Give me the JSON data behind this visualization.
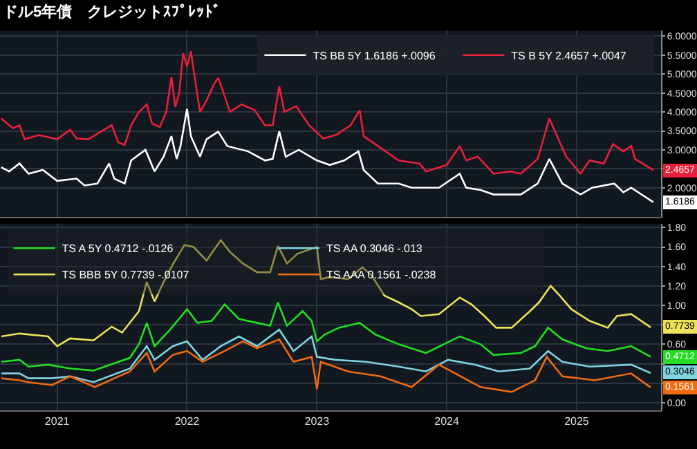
{
  "chart_data": [
    {
      "type": "line",
      "title": "ドル5年債　クレジットｽﾌﾟﾚｯﾄﾞ",
      "xlim": [
        2021.06,
        2026.15
      ],
      "xticks": [
        {
          "value": 2021.5,
          "label": null
        },
        {
          "value": 2022.5,
          "label": null
        },
        {
          "value": 2023.5,
          "label": null
        },
        {
          "value": 2024.5,
          "label": null
        },
        {
          "value": 2025.5,
          "label": null
        }
      ],
      "ylim": [
        1.23,
        6.15
      ],
      "yticks": [
        {
          "value": 2,
          "label": "2.0000"
        },
        {
          "value": 2.5,
          "label": null
        },
        {
          "value": 3,
          "label": "3.0000"
        },
        {
          "value": 3.5,
          "label": "3.5000"
        },
        {
          "value": 4,
          "label": "4.0000"
        },
        {
          "value": 4.5,
          "label": "4.5000"
        },
        {
          "value": 5,
          "label": "5.0000"
        },
        {
          "value": 5.5,
          "label": "5.5000"
        },
        {
          "value": 6,
          "label": "6.0000"
        }
      ],
      "tick_labels": "y",
      "grid": true,
      "legend": "top right",
      "series": [
        {
          "name": "TS BB 5Y 1.6186 +.0096",
          "color": "#ffffff",
          "x": [
            2021.07,
            2021.13,
            2021.21,
            2021.28,
            2021.39,
            2021.5,
            2021.65,
            2021.71,
            2021.81,
            2021.9,
            2021.94,
            2022.02,
            2022.07,
            2022.18,
            2022.25,
            2022.32,
            2022.38,
            2022.42,
            2022.45,
            2022.5,
            2022.53,
            2022.6,
            2022.65,
            2022.74,
            2022.81,
            2022.97,
            2023.1,
            2023.16,
            2023.21,
            2023.26,
            2023.36,
            2023.5,
            2023.6,
            2023.71,
            2023.82,
            2023.86,
            2023.97,
            2024.13,
            2024.23,
            2024.44,
            2024.6,
            2024.65,
            2024.76,
            2024.86,
            2025.07,
            2025.2,
            2025.29,
            2025.39,
            2025.53,
            2025.62,
            2025.79,
            2025.86,
            2025.92,
            2026.09
          ],
          "values": [
            2.54,
            2.43,
            2.64,
            2.37,
            2.47,
            2.18,
            2.24,
            2.06,
            2.11,
            2.64,
            2.24,
            2.11,
            2.72,
            3.0,
            2.43,
            2.82,
            3.36,
            2.76,
            3.1,
            4.08,
            3.36,
            2.82,
            3.28,
            3.48,
            3.1,
            2.96,
            2.72,
            2.76,
            3.49,
            2.82,
            3.0,
            2.72,
            2.6,
            2.72,
            2.96,
            2.47,
            2.11,
            2.11,
            2.0,
            2.0,
            2.37,
            2.0,
            1.94,
            1.82,
            1.82,
            2.11,
            2.76,
            2.11,
            1.82,
            2.0,
            2.11,
            1.88,
            2.0,
            1.6186
          ],
          "value_labels": [
            null,
            null,
            null,
            null,
            null,
            null,
            null,
            null,
            null,
            null,
            null,
            null,
            null,
            null,
            null,
            null,
            null,
            null,
            null,
            null,
            null,
            null,
            null,
            null,
            null,
            null,
            null,
            null,
            null,
            null,
            null,
            null,
            null,
            null,
            null,
            null,
            null,
            null,
            null,
            null,
            null,
            null,
            null,
            null,
            null,
            null,
            null,
            null,
            null,
            null,
            null,
            null,
            null,
            "1.6186"
          ]
        },
        {
          "name": "TS B 5Y 2.4657 +.0047",
          "color": "#e8203a",
          "x": [
            2021.07,
            2021.16,
            2021.21,
            2021.25,
            2021.36,
            2021.5,
            2021.6,
            2021.65,
            2021.74,
            2021.92,
            2021.97,
            2022.02,
            2022.07,
            2022.13,
            2022.19,
            2022.23,
            2022.29,
            2022.34,
            2022.38,
            2022.41,
            2022.44,
            2022.47,
            2022.5,
            2022.53,
            2022.55,
            2022.6,
            2022.65,
            2022.71,
            2022.74,
            2022.78,
            2022.83,
            2022.92,
            2023.02,
            2023.1,
            2023.16,
            2023.21,
            2023.25,
            2023.34,
            2023.44,
            2023.55,
            2023.65,
            2023.76,
            2023.83,
            2023.86,
            2023.97,
            2024.13,
            2024.29,
            2024.34,
            2024.5,
            2024.6,
            2024.65,
            2024.74,
            2024.86,
            2024.99,
            2025.07,
            2025.2,
            2025.29,
            2025.36,
            2025.42,
            2025.53,
            2025.6,
            2025.71,
            2025.78,
            2025.86,
            2025.92,
            2025.95,
            2026.09
          ],
          "values": [
            3.83,
            3.57,
            3.65,
            3.28,
            3.39,
            3.28,
            3.53,
            3.3,
            3.28,
            3.65,
            3.2,
            3.13,
            3.65,
            4.0,
            4.2,
            3.7,
            3.6,
            4.0,
            4.93,
            4.13,
            4.5,
            5.55,
            5.2,
            5.6,
            5.12,
            4.0,
            4.3,
            4.75,
            4.9,
            4.52,
            4.0,
            4.2,
            4.05,
            3.65,
            3.65,
            4.68,
            4.0,
            4.15,
            3.65,
            3.3,
            3.4,
            3.65,
            4.05,
            3.36,
            3.1,
            2.72,
            2.64,
            2.43,
            2.6,
            3.1,
            2.72,
            2.82,
            2.37,
            2.43,
            2.37,
            2.76,
            3.83,
            3.28,
            2.82,
            2.37,
            2.72,
            2.64,
            3.15,
            2.96,
            3.1,
            2.76,
            2.4657
          ],
          "value_labels": [
            null,
            null,
            null,
            null,
            null,
            null,
            null,
            null,
            null,
            null,
            null,
            null,
            null,
            null,
            null,
            null,
            null,
            null,
            null,
            null,
            null,
            null,
            null,
            null,
            null,
            null,
            null,
            null,
            null,
            null,
            null,
            null,
            null,
            null,
            null,
            null,
            null,
            null,
            null,
            null,
            null,
            null,
            null,
            null,
            null,
            null,
            null,
            null,
            null,
            null,
            null,
            null,
            null,
            null,
            null,
            null,
            null,
            null,
            null,
            null,
            null,
            null,
            null,
            null,
            null,
            null,
            "2.4657"
          ]
        }
      ]
    },
    {
      "type": "line",
      "xlim": [
        2021.06,
        2026.15
      ],
      "xticks": [
        {
          "value": 2021.5,
          "label": "2021"
        },
        {
          "value": 2022.5,
          "label": "2022"
        },
        {
          "value": 2023.5,
          "label": "2023"
        },
        {
          "value": 2024.5,
          "label": "2024"
        },
        {
          "value": 2025.5,
          "label": "2025"
        }
      ],
      "ylim": [
        -0.08,
        1.84
      ],
      "yticks": [
        {
          "value": 0,
          "label": "0.00"
        },
        {
          "value": 0.2,
          "label": null
        },
        {
          "value": 0.4,
          "label": null
        },
        {
          "value": 0.6,
          "label": "0.60"
        },
        {
          "value": 0.8,
          "label": null
        },
        {
          "value": 1.0,
          "label": "1.00"
        },
        {
          "value": 1.2,
          "label": "1.20"
        },
        {
          "value": 1.4,
          "label": "1.40"
        },
        {
          "value": 1.6,
          "label": "1.60"
        },
        {
          "value": 1.8,
          "label": "1.80"
        }
      ],
      "grid": true,
      "legend": "top left",
      "series": [
        {
          "name": "TS A 5Y 0.4712 -.0126",
          "color": "#22dd22",
          "x": [
            2021.07,
            2021.21,
            2021.28,
            2021.43,
            2021.6,
            2021.78,
            2022.06,
            2022.13,
            2022.19,
            2022.25,
            2022.37,
            2022.5,
            2022.58,
            2022.69,
            2022.79,
            2022.9,
            2023.04,
            2023.14,
            2023.2,
            2023.27,
            2023.39,
            2023.46,
            2023.5,
            2023.56,
            2023.67,
            2023.83,
            2023.95,
            2024.13,
            2024.34,
            2024.6,
            2024.76,
            2024.86,
            2025.07,
            2025.18,
            2025.28,
            2025.39,
            2025.57,
            2025.74,
            2025.92,
            2026.07
          ],
          "values": [
            0.42,
            0.44,
            0.37,
            0.39,
            0.35,
            0.33,
            0.46,
            0.6,
            0.82,
            0.58,
            0.75,
            0.96,
            0.82,
            0.84,
            1.01,
            0.86,
            0.82,
            0.79,
            1.03,
            0.79,
            0.94,
            0.84,
            0.63,
            0.7,
            0.77,
            0.82,
            0.7,
            0.6,
            0.51,
            0.68,
            0.6,
            0.49,
            0.51,
            0.58,
            0.77,
            0.65,
            0.56,
            0.53,
            0.58,
            0.4712
          ],
          "value_labels": [
            null,
            null,
            null,
            null,
            null,
            null,
            null,
            null,
            null,
            null,
            null,
            null,
            null,
            null,
            null,
            null,
            null,
            null,
            null,
            null,
            null,
            null,
            null,
            null,
            null,
            null,
            null,
            null,
            null,
            null,
            null,
            null,
            null,
            null,
            null,
            null,
            null,
            null,
            null,
            "0.4712"
          ]
        },
        {
          "name": "TS AA 0.3046 -.013",
          "color": "#7fd4e0",
          "x": [
            2021.07,
            2021.21,
            2021.28,
            2021.46,
            2021.6,
            2021.78,
            2022.06,
            2022.19,
            2022.25,
            2022.39,
            2022.5,
            2022.62,
            2022.76,
            2022.9,
            2023.04,
            2023.21,
            2023.32,
            2023.46,
            2023.5,
            2023.64,
            2023.88,
            2024.13,
            2024.34,
            2024.51,
            2024.72,
            2024.9,
            2025.14,
            2025.28,
            2025.39,
            2025.6,
            2025.92,
            2026.07
          ],
          "values": [
            0.3,
            0.3,
            0.25,
            0.25,
            0.27,
            0.21,
            0.35,
            0.58,
            0.44,
            0.58,
            0.63,
            0.44,
            0.58,
            0.68,
            0.58,
            0.75,
            0.53,
            0.68,
            0.47,
            0.44,
            0.42,
            0.37,
            0.32,
            0.44,
            0.39,
            0.32,
            0.35,
            0.53,
            0.42,
            0.37,
            0.39,
            0.3046
          ],
          "value_labels": [
            null,
            null,
            null,
            null,
            null,
            null,
            null,
            null,
            null,
            null,
            null,
            null,
            null,
            null,
            null,
            null,
            null,
            null,
            null,
            null,
            null,
            null,
            null,
            null,
            null,
            null,
            null,
            null,
            null,
            null,
            null,
            "0.3046"
          ]
        },
        {
          "name": "TS BBB 5Y 0.7739 -.0107",
          "color": "#ede35a",
          "x": [
            2021.07,
            2021.21,
            2021.43,
            2021.5,
            2021.6,
            2021.78,
            2021.92,
            2022.0,
            2022.13,
            2022.19,
            2022.25,
            2022.32,
            2022.39,
            2022.44,
            2022.48,
            2022.55,
            2022.65,
            2022.76,
            2022.83,
            2022.93,
            2023.04,
            2023.14,
            2023.2,
            2023.27,
            2023.35,
            2023.5,
            2023.53,
            2023.6,
            2023.74,
            2023.85,
            2023.92,
            2024.02,
            2024.13,
            2024.23,
            2024.3,
            2024.44,
            2024.6,
            2024.69,
            2024.79,
            2024.88,
            2025.0,
            2025.14,
            2025.21,
            2025.3,
            2025.37,
            2025.46,
            2025.6,
            2025.74,
            2025.81,
            2025.92,
            2026.07
          ],
          "values": [
            0.68,
            0.71,
            0.68,
            0.58,
            0.66,
            0.64,
            0.78,
            0.72,
            0.94,
            1.24,
            1.04,
            1.24,
            1.42,
            1.53,
            1.62,
            1.6,
            1.46,
            1.67,
            1.55,
            1.43,
            1.34,
            1.34,
            1.61,
            1.43,
            1.53,
            1.6,
            1.27,
            1.29,
            1.27,
            1.39,
            1.31,
            1.1,
            1.03,
            0.96,
            0.89,
            0.91,
            1.08,
            1.01,
            0.89,
            0.77,
            0.77,
            0.94,
            1.03,
            1.2,
            1.1,
            0.96,
            0.84,
            0.77,
            0.89,
            0.91,
            0.7739
          ],
          "value_labels": [
            null,
            null,
            null,
            null,
            null,
            null,
            null,
            null,
            null,
            null,
            null,
            null,
            null,
            null,
            null,
            null,
            null,
            null,
            null,
            null,
            null,
            null,
            null,
            null,
            null,
            null,
            null,
            null,
            null,
            null,
            null,
            null,
            null,
            null,
            null,
            null,
            null,
            null,
            null,
            null,
            null,
            null,
            null,
            null,
            null,
            null,
            null,
            null,
            null,
            null,
            "0.7739"
          ]
        },
        {
          "name": "TS AAA 0.1561 -.0238",
          "color": "#f06a10",
          "x": [
            2021.07,
            2021.21,
            2021.28,
            2021.46,
            2021.6,
            2021.79,
            2022.06,
            2022.19,
            2022.25,
            2022.39,
            2022.5,
            2022.62,
            2022.79,
            2022.93,
            2023.04,
            2023.21,
            2023.32,
            2023.46,
            2023.5,
            2023.53,
            2023.74,
            2023.99,
            2024.23,
            2024.44,
            2024.76,
            2025.0,
            2025.18,
            2025.27,
            2025.39,
            2025.64,
            2025.92,
            2026.07
          ],
          "values": [
            0.25,
            0.23,
            0.21,
            0.18,
            0.27,
            0.16,
            0.32,
            0.51,
            0.32,
            0.49,
            0.53,
            0.42,
            0.53,
            0.63,
            0.56,
            0.65,
            0.42,
            0.47,
            0.14,
            0.42,
            0.32,
            0.27,
            0.16,
            0.39,
            0.16,
            0.11,
            0.23,
            0.47,
            0.27,
            0.23,
            0.3,
            0.1561
          ],
          "value_labels": [
            null,
            null,
            null,
            null,
            null,
            null,
            null,
            null,
            null,
            null,
            null,
            null,
            null,
            null,
            null,
            null,
            null,
            null,
            null,
            null,
            null,
            null,
            null,
            null,
            null,
            null,
            null,
            null,
            null,
            null,
            null,
            "0.1561"
          ]
        }
      ]
    }
  ]
}
